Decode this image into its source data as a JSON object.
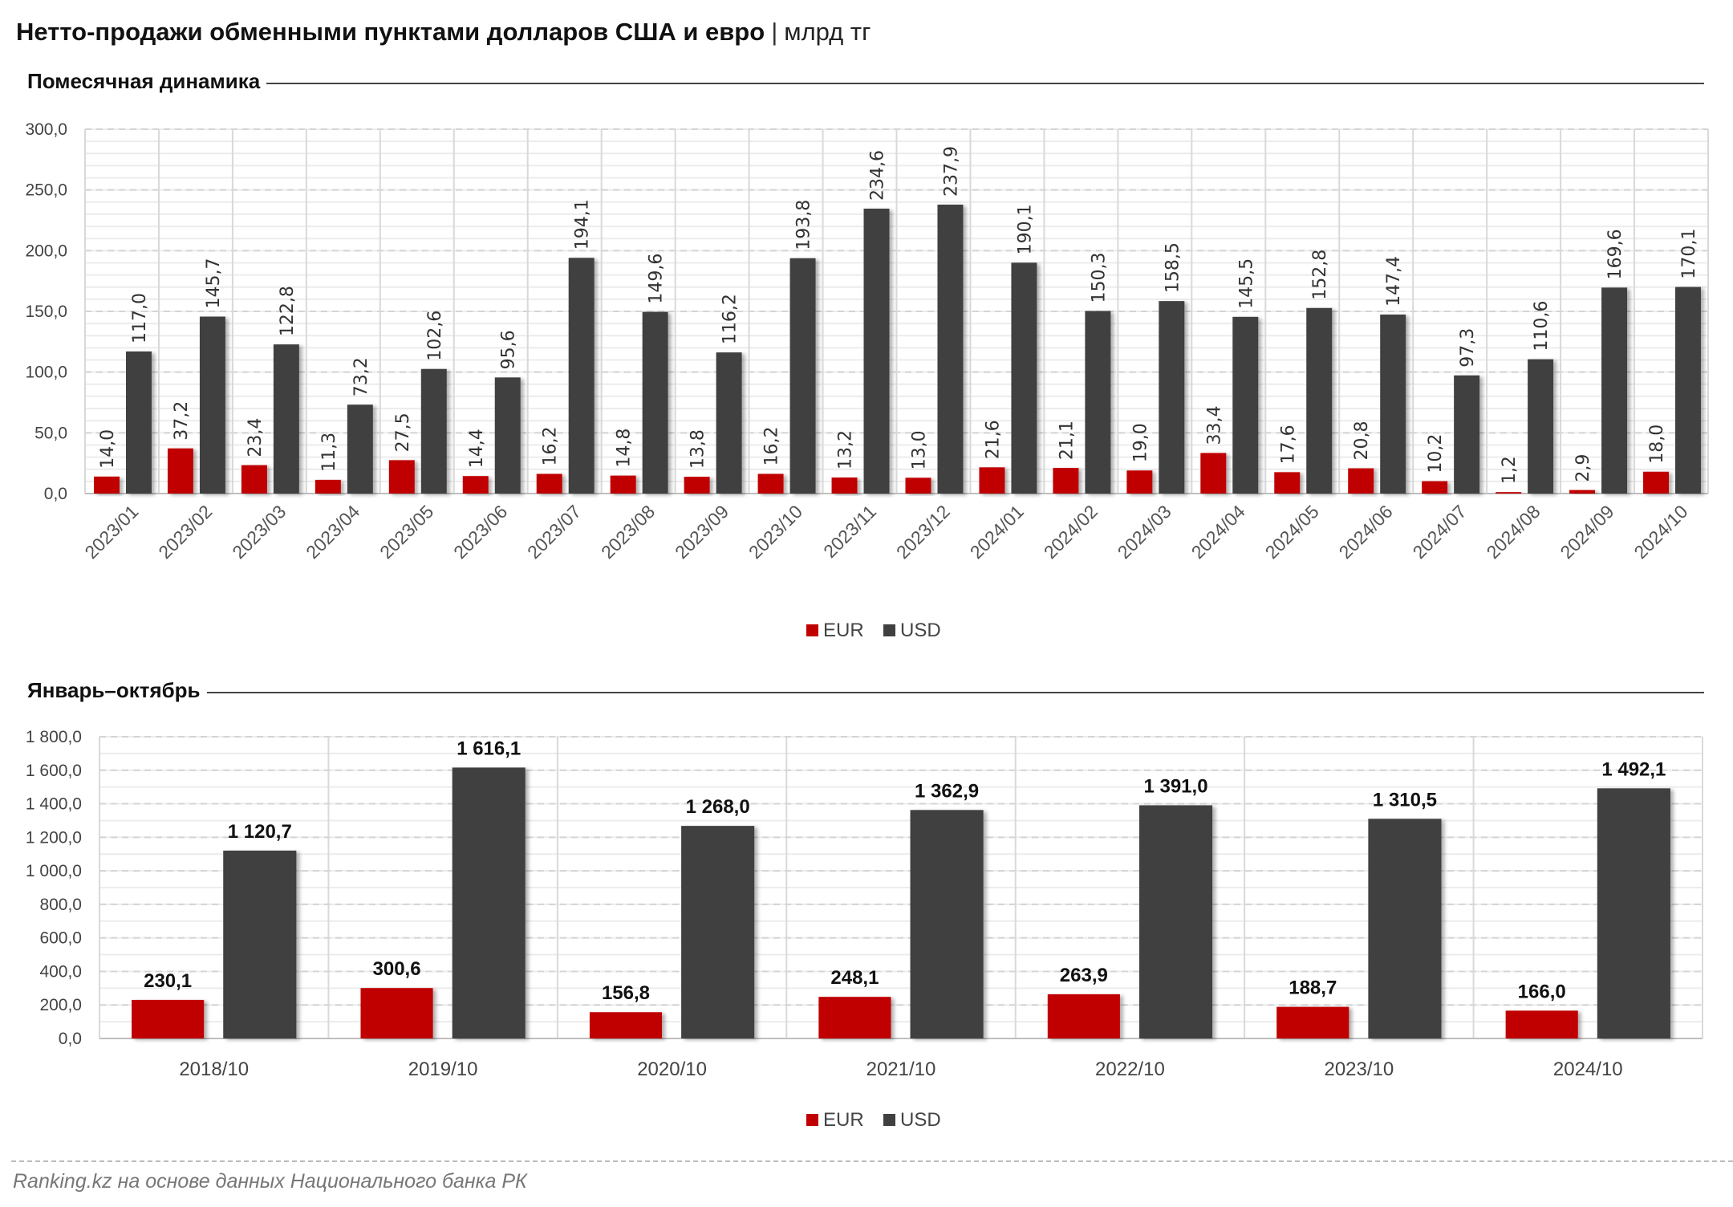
{
  "title": {
    "main": "Нетто-продажи обменными пунктами долларов США и евро",
    "separator": "|",
    "unit": "млрд тг"
  },
  "sections": {
    "monthly": "Помесячная динамика",
    "annual": "Январь–октябрь"
  },
  "footer": "Ranking.kz на основе данных Национального банка РК",
  "colors": {
    "EUR": "#c00000",
    "USD": "#404040"
  },
  "chart_data": [
    {
      "type": "bar",
      "title": "Помесячная динамика",
      "categories": [
        "2023/01",
        "2023/02",
        "2023/03",
        "2023/04",
        "2023/05",
        "2023/06",
        "2023/07",
        "2023/08",
        "2023/09",
        "2023/10",
        "2023/11",
        "2023/12",
        "2024/01",
        "2024/02",
        "2024/03",
        "2024/04",
        "2024/05",
        "2024/06",
        "2024/07",
        "2024/08",
        "2024/09",
        "2024/10"
      ],
      "series": [
        {
          "name": "EUR",
          "values": [
            14.0,
            37.2,
            23.4,
            11.3,
            27.5,
            14.4,
            16.2,
            14.8,
            13.8,
            16.2,
            13.2,
            13.0,
            21.6,
            21.1,
            19.0,
            33.4,
            17.6,
            20.8,
            10.2,
            1.2,
            2.9,
            18.0
          ],
          "labels": [
            "14,0",
            "37,2",
            "23,4",
            "11,3",
            "27,5",
            "14,4",
            "16,2",
            "14,8",
            "13,8",
            "16,2",
            "13,2",
            "13,0",
            "21,6",
            "21,1",
            "19,0",
            "33,4",
            "17,6",
            "20,8",
            "10,2",
            "1,2",
            "2,9",
            "18,0"
          ]
        },
        {
          "name": "USD",
          "values": [
            117.0,
            145.7,
            122.8,
            73.2,
            102.6,
            95.6,
            194.1,
            149.6,
            116.2,
            193.8,
            234.6,
            237.9,
            190.1,
            150.3,
            158.5,
            145.5,
            152.8,
            147.4,
            97.3,
            110.6,
            169.6,
            170.1
          ],
          "labels": [
            "117,0",
            "145,7",
            "122,8",
            "73,2",
            "102,6",
            "95,6",
            "194,1",
            "149,6",
            "116,2",
            "193,8",
            "234,6",
            "237,9",
            "190,1",
            "150,3",
            "158,5",
            "145,5",
            "152,8",
            "147,4",
            "97,3",
            "110,6",
            "169,6",
            "170,1"
          ]
        }
      ],
      "ylim": [
        0,
        300
      ],
      "yticks": [
        "0,0",
        "50,0",
        "100,0",
        "150,0",
        "200,0",
        "250,0",
        "300,0"
      ],
      "grid": true,
      "legend": "bottom-center"
    },
    {
      "type": "bar",
      "title": "Январь–октябрь",
      "categories": [
        "2018/10",
        "2019/10",
        "2020/10",
        "2021/10",
        "2022/10",
        "2023/10",
        "2024/10"
      ],
      "series": [
        {
          "name": "EUR",
          "values": [
            230.1,
            300.6,
            156.8,
            248.1,
            263.9,
            188.7,
            166.0
          ],
          "labels": [
            "230,1",
            "300,6",
            "156,8",
            "248,1",
            "263,9",
            "188,7",
            "166,0"
          ]
        },
        {
          "name": "USD",
          "values": [
            1120.7,
            1616.1,
            1268.0,
            1362.9,
            1391.0,
            1310.5,
            1492.1
          ],
          "labels": [
            "1 120,7",
            "1 616,1",
            "1 268,0",
            "1 362,9",
            "1 391,0",
            "1 310,5",
            "1 492,1"
          ]
        }
      ],
      "ylim": [
        0,
        1800
      ],
      "yticks": [
        "0,0",
        "200,0",
        "400,0",
        "600,0",
        "800,0",
        "1 000,0",
        "1 200,0",
        "1 400,0",
        "1 600,0",
        "1 800,0"
      ],
      "grid": true,
      "legend": "bottom-center"
    }
  ]
}
